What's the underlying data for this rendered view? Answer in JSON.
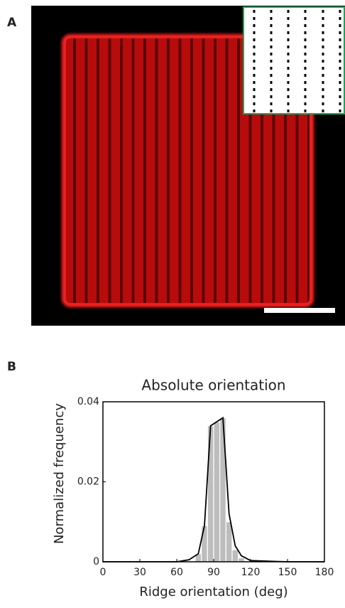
{
  "panel_labels": [
    "A",
    "B"
  ],
  "chart_data": {
    "type": "histogram",
    "title": "Absolute orientation",
    "xlabel": "Ridge orientation (deg)",
    "ylabel": "Normalized frequency",
    "bins": [
      0,
      5,
      10,
      15,
      20,
      25,
      30,
      35,
      40,
      45,
      50,
      55,
      60,
      65,
      70,
      75,
      80,
      85,
      90,
      95,
      100,
      105,
      110,
      115,
      120,
      125,
      130,
      135,
      140,
      145,
      150,
      155,
      160,
      165,
      170,
      175,
      180
    ],
    "values": [
      0,
      0,
      0,
      0,
      0,
      0,
      0,
      0,
      0,
      0,
      0,
      0,
      0,
      0,
      0,
      0.002,
      0.009,
      0.034,
      0.035,
      0.036,
      0.01,
      0.003,
      0.001,
      0,
      0,
      0,
      0,
      0,
      0,
      0,
      0,
      0,
      0,
      0,
      0,
      0
    ],
    "color": "#bdbdbd",
    "line": {
      "color": "#000000",
      "x": [
        0,
        30,
        60,
        70,
        77.5,
        82.5,
        87.5,
        92.5,
        97.5,
        102.5,
        107.5,
        112.5,
        120,
        150,
        180
      ],
      "values": [
        0,
        0,
        0,
        0.0005,
        0.002,
        0.009,
        0.034,
        0.035,
        0.036,
        0.012,
        0.004,
        0.0015,
        0.0003,
        0,
        0
      ]
    },
    "xlim": [
      0,
      180
    ],
    "ylim": [
      0,
      0.04
    ],
    "xticks": [
      0,
      30,
      60,
      90,
      120,
      150,
      180
    ],
    "yticks": [
      0,
      0.02,
      0.04
    ]
  }
}
